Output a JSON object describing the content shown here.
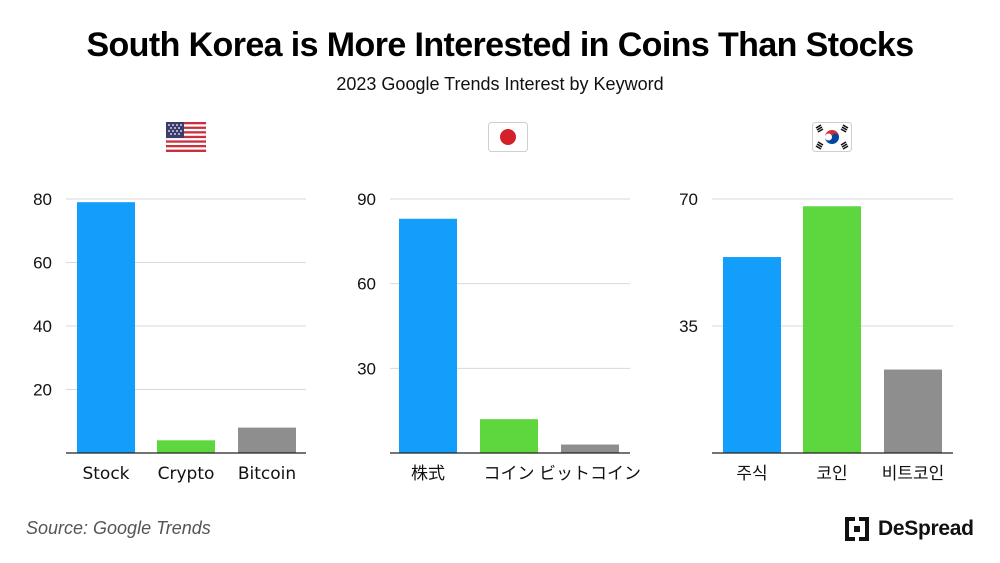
{
  "title": "South Korea is More Interested in Coins Than Stocks",
  "subtitle": "2023 Google Trends Interest by Keyword",
  "source": "Source: Google Trends",
  "brand": "DeSpread",
  "colors": {
    "blue": "#129EFA",
    "green": "#5ED63E",
    "gray": "#8E8E8E",
    "grid": "#D9D9D9",
    "axis": "#222222"
  },
  "chart_data": [
    {
      "type": "bar",
      "panel": "us",
      "flag": "us-flag-icon",
      "categories": [
        "Stock",
        "Crypto",
        "Bitcoin"
      ],
      "values": [
        79,
        4,
        8
      ],
      "yticks": [
        20,
        40,
        60,
        80
      ],
      "ylim": [
        0,
        80
      ],
      "bar_colors": [
        "blue",
        "green",
        "gray"
      ]
    },
    {
      "type": "bar",
      "panel": "japan",
      "flag": "japan-flag-icon",
      "categories": [
        "株式",
        "コイン",
        "ビットコイン"
      ],
      "values": [
        83,
        12,
        3
      ],
      "yticks": [
        30,
        60,
        90
      ],
      "ylim": [
        0,
        90
      ],
      "bar_colors": [
        "blue",
        "green",
        "gray"
      ]
    },
    {
      "type": "bar",
      "panel": "korea",
      "flag": "korea-flag-icon",
      "categories": [
        "주식",
        "코인",
        "비트코인"
      ],
      "values": [
        54,
        68,
        23
      ],
      "yticks": [
        35,
        70
      ],
      "ylim": [
        0,
        70
      ],
      "bar_colors": [
        "blue",
        "green",
        "gray"
      ]
    }
  ]
}
